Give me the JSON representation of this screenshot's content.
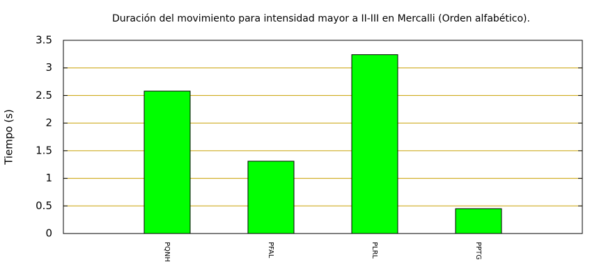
{
  "chart_data": {
    "type": "bar",
    "title": "Duración del movimiento para intensidad mayor a II-III en Mercalli (Orden alfabético).",
    "y_label": "Tiempo (s)",
    "categories": [
      "PQNH",
      "PFAL",
      "PLRL",
      "PPTG"
    ],
    "values": [
      2.58,
      1.31,
      3.24,
      0.45
    ],
    "color": "#00ff00",
    "ylim": [
      0,
      3.5
    ],
    "yticks": [
      0,
      0.5,
      1,
      1.5,
      2,
      2.5,
      3,
      3.5
    ],
    "grid": true,
    "grid_color": "#c8a000"
  }
}
